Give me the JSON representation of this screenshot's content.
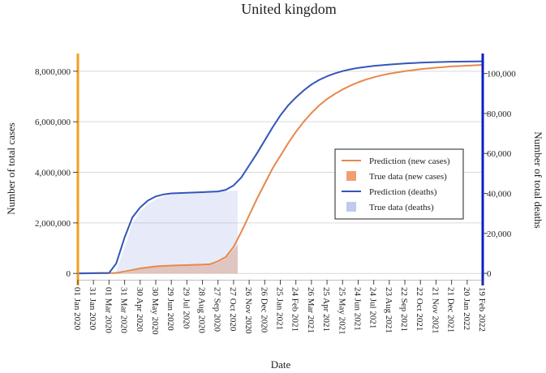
{
  "chart_data": {
    "type": "line",
    "title": "United kingdom",
    "xlabel": "Date",
    "ylabel_left": "Number of total cases",
    "ylabel_right": "Number of total deaths",
    "ylim_left": [
      -250000,
      8700000
    ],
    "ylim_right": [
      -3200,
      110000
    ],
    "yticks_left": [
      0,
      2000000,
      4000000,
      6000000,
      8000000
    ],
    "yticks_left_labels": [
      "0",
      "2,000,000",
      "4,000,000",
      "6,000,000",
      "8,000,000"
    ],
    "yticks_right": [
      0,
      20000,
      40000,
      60000,
      80000,
      100000
    ],
    "yticks_right_labels": [
      "0",
      "20,000",
      "40,000",
      "60,000",
      "80,000",
      "100,000"
    ],
    "x_start": "2020-01-01",
    "x_end": "2022-02-19",
    "xticks": [
      "2020-01-01",
      "2020-01-31",
      "2020-03-01",
      "2020-03-31",
      "2020-04-30",
      "2020-05-30",
      "2020-06-29",
      "2020-07-29",
      "2020-08-28",
      "2020-09-27",
      "2020-10-27",
      "2020-11-26",
      "2020-12-26",
      "2021-01-25",
      "2021-02-24",
      "2021-03-26",
      "2021-04-25",
      "2021-05-25",
      "2021-06-24",
      "2021-07-24",
      "2021-08-23",
      "2021-09-22",
      "2021-10-22",
      "2021-11-21",
      "2021-12-21",
      "2022-01-20",
      "2022-02-19"
    ],
    "xtick_labels": [
      "01 Jan 2020",
      "31 Jan 2020",
      "01 Mar 2020",
      "31 Mar 2020",
      "30 Apr 2020",
      "30 May 2020",
      "29 Jun 2020",
      "29 Jul 2020",
      "28 Aug 2020",
      "27 Sep 2020",
      "27 Oct 2020",
      "26 Nov 2020",
      "26 Dec 2020",
      "25 Jan 2021",
      "24 Feb 2021",
      "26 Mar 2021",
      "25 Apr 2021",
      "25 May 2021",
      "24 Jun 2021",
      "24 Jul 2021",
      "23 Aug 2021",
      "22 Sep 2021",
      "22 Oct 2021",
      "21 Nov 2021",
      "21 Dec 2021",
      "20 Jan 2022",
      "19 Feb 2022"
    ],
    "grid": true,
    "legend_position": "right",
    "series": [
      {
        "name": "Prediction (new cases)",
        "kind": "line",
        "axis": "left",
        "color": "#e8884a",
        "x": [
          "2020-01-01",
          "2020-02-15",
          "2020-03-15",
          "2020-04-01",
          "2020-04-30",
          "2020-05-30",
          "2020-06-29",
          "2020-07-29",
          "2020-08-28",
          "2020-09-12",
          "2020-09-27",
          "2020-10-12",
          "2020-10-27",
          "2020-11-11",
          "2020-11-26",
          "2020-12-11",
          "2020-12-26",
          "2021-01-10",
          "2021-01-25",
          "2021-02-09",
          "2021-02-24",
          "2021-03-11",
          "2021-03-26",
          "2021-04-10",
          "2021-04-25",
          "2021-05-10",
          "2021-05-25",
          "2021-06-09",
          "2021-06-24",
          "2021-07-09",
          "2021-07-24",
          "2021-08-08",
          "2021-08-23",
          "2021-09-22",
          "2021-10-22",
          "2021-11-21",
          "2021-12-21",
          "2022-01-20",
          "2022-02-19"
        ],
        "y": [
          0,
          10000,
          20000,
          80000,
          200000,
          280000,
          310000,
          330000,
          350000,
          370000,
          480000,
          650000,
          1050000,
          1650000,
          2300000,
          2950000,
          3550000,
          4150000,
          4650000,
          5150000,
          5600000,
          6000000,
          6350000,
          6650000,
          6900000,
          7100000,
          7280000,
          7430000,
          7560000,
          7670000,
          7760000,
          7840000,
          7900000,
          8000000,
          8080000,
          8140000,
          8190000,
          8220000,
          8250000
        ]
      },
      {
        "name": "True data (new cases)",
        "kind": "area",
        "axis": "left",
        "color": "#f0a070",
        "x": [
          "2020-01-01",
          "2020-03-01",
          "2020-03-31",
          "2020-04-30",
          "2020-05-30",
          "2020-06-29",
          "2020-07-29",
          "2020-08-28",
          "2020-09-12",
          "2020-09-27",
          "2020-10-12",
          "2020-10-27",
          "2020-11-04"
        ],
        "y": [
          0,
          100,
          25000,
          170000,
          260000,
          300000,
          320000,
          340000,
          350000,
          420000,
          600000,
          950000,
          1150000
        ]
      },
      {
        "name": "Prediction (deaths)",
        "kind": "line",
        "axis": "right",
        "color": "#3456b8",
        "x": [
          "2020-01-01",
          "2020-03-01",
          "2020-03-15",
          "2020-03-31",
          "2020-04-15",
          "2020-04-30",
          "2020-05-15",
          "2020-05-30",
          "2020-06-14",
          "2020-06-29",
          "2020-07-29",
          "2020-08-28",
          "2020-09-27",
          "2020-10-12",
          "2020-10-27",
          "2020-11-11",
          "2020-11-26",
          "2020-12-11",
          "2020-12-26",
          "2021-01-10",
          "2021-01-25",
          "2021-02-09",
          "2021-02-24",
          "2021-03-11",
          "2021-03-26",
          "2021-04-10",
          "2021-04-25",
          "2021-05-10",
          "2021-05-25",
          "2021-06-09",
          "2021-06-24",
          "2021-07-24",
          "2021-08-23",
          "2021-09-22",
          "2021-10-22",
          "2021-11-21",
          "2021-12-21",
          "2022-01-20",
          "2022-02-19"
        ],
        "y": [
          0,
          200,
          5000,
          18000,
          28000,
          33000,
          36500,
          38500,
          39500,
          40000,
          40300,
          40600,
          41000,
          41800,
          44000,
          48000,
          54000,
          60000,
          66500,
          73000,
          79000,
          84000,
          88000,
          91500,
          94500,
          96800,
          98600,
          100000,
          101200,
          102100,
          102800,
          103800,
          104500,
          105000,
          105400,
          105700,
          105900,
          106000,
          106100
        ]
      },
      {
        "name": "True data (deaths)",
        "kind": "area",
        "axis": "right",
        "color": "#aab8e8",
        "x": [
          "2020-01-01",
          "2020-03-01",
          "2020-03-15",
          "2020-03-31",
          "2020-04-15",
          "2020-04-30",
          "2020-05-15",
          "2020-05-30",
          "2020-06-14",
          "2020-06-29",
          "2020-07-29",
          "2020-08-28",
          "2020-09-27",
          "2020-10-12",
          "2020-11-04"
        ],
        "y": [
          0,
          0,
          1000,
          13000,
          25000,
          31000,
          34500,
          37000,
          38500,
          39500,
          40000,
          40300,
          40800,
          41100,
          41500
        ]
      }
    ]
  }
}
